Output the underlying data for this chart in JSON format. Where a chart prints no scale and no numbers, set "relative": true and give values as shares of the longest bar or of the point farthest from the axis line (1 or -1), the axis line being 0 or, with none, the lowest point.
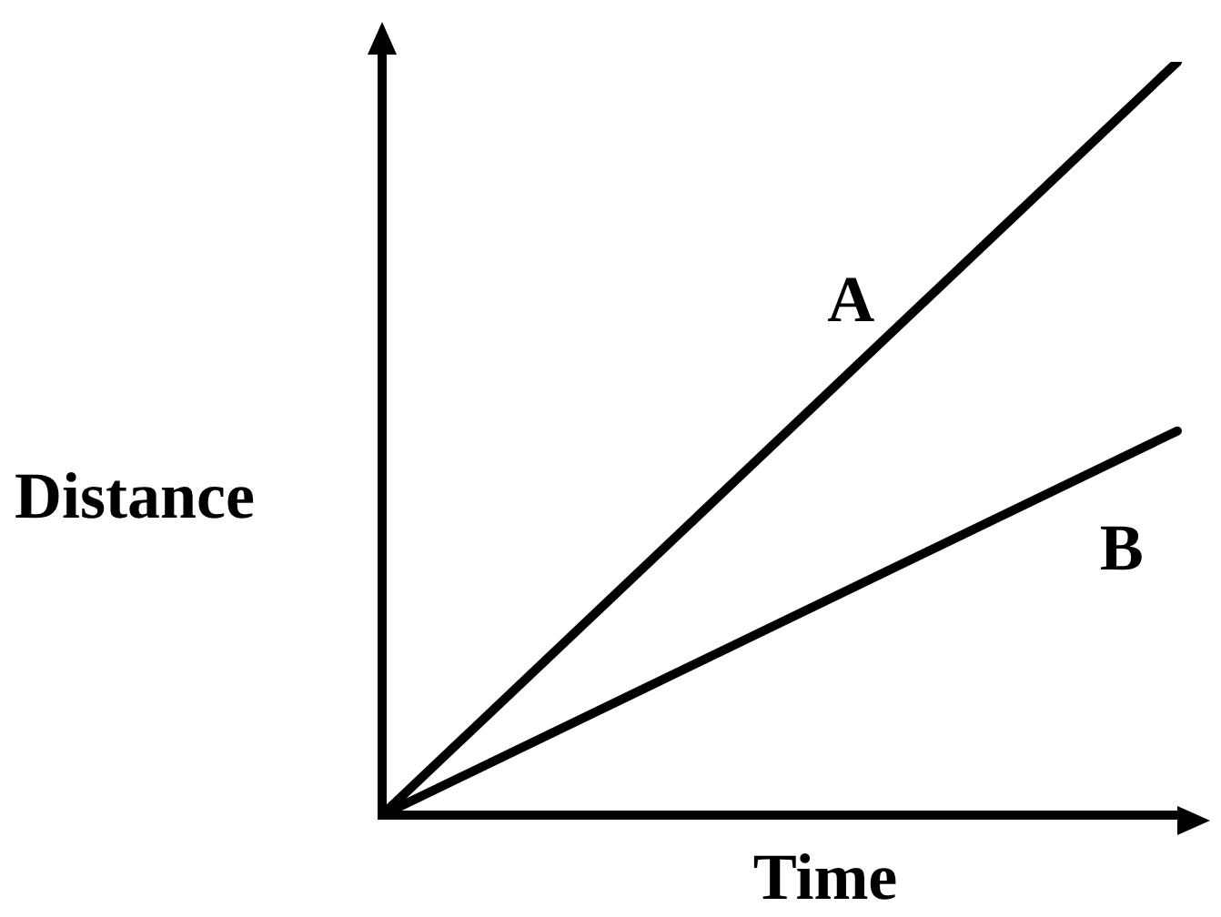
{
  "chart_data": {
    "type": "line",
    "relative": true,
    "xlabel": "Time",
    "ylabel": "Distance",
    "categories": [
      null,
      null
    ],
    "series": [
      {
        "name": "A",
        "color": "#000000",
        "values": [
          0,
          1
        ]
      },
      {
        "name": "B",
        "color": "#000000",
        "values": [
          0,
          0.51
        ]
      }
    ]
  }
}
